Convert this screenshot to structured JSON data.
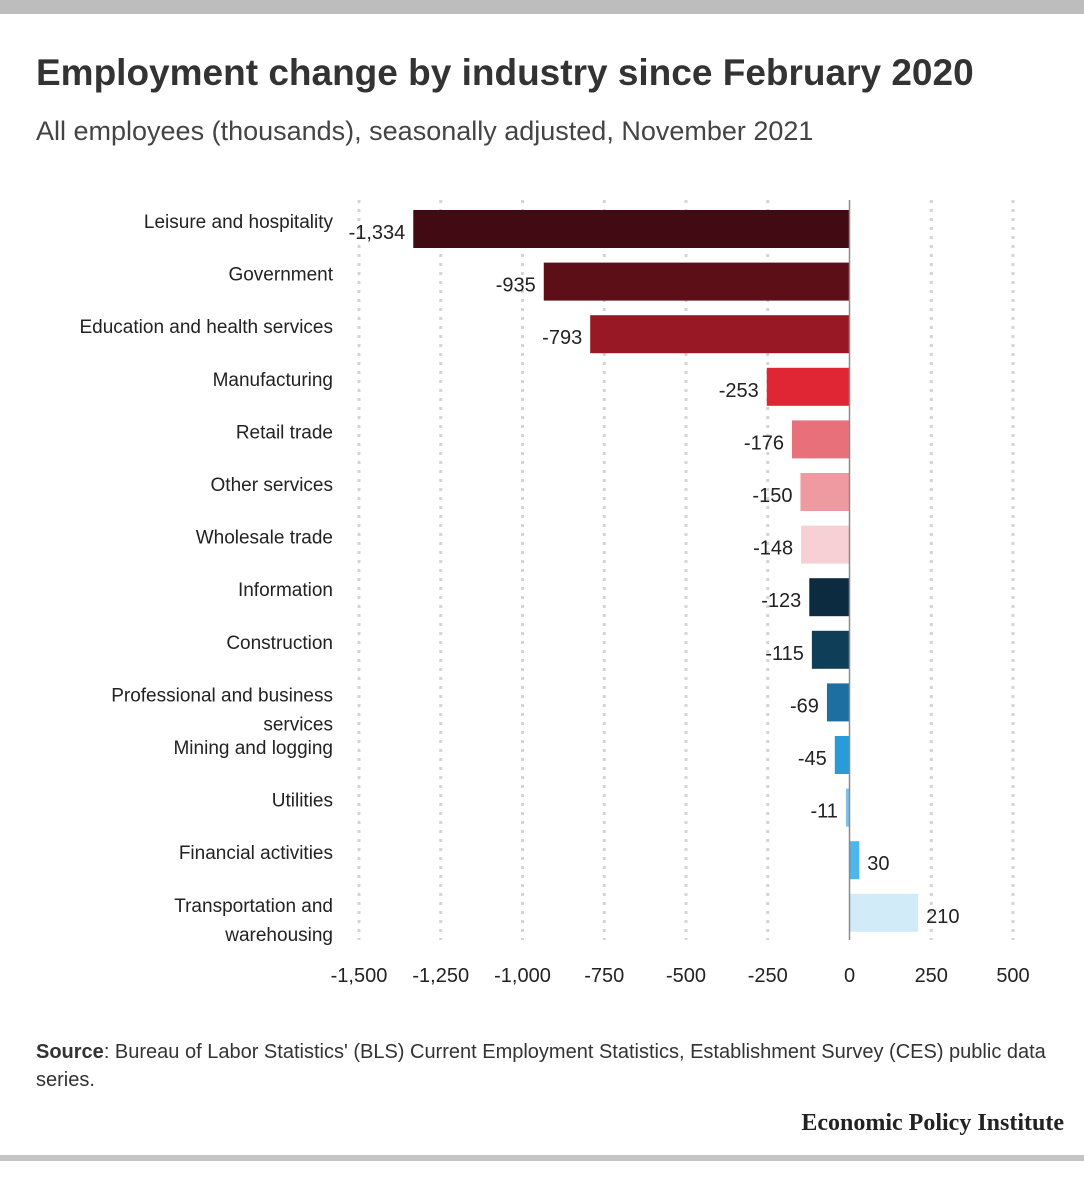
{
  "title": "Employment change by industry since February 2020",
  "subtitle": "All employees (thousands), seasonally adjusted, November 2021",
  "source_label": "Source",
  "source_text": ": Bureau of Labor Statistics' (BLS) Current Employment Statistics, Establishment Survey (CES) public data series.",
  "brand": "Economic Policy Institute",
  "chart_data": {
    "type": "bar",
    "orientation": "horizontal",
    "title": "Employment change by industry since February 2020",
    "subtitle": "All employees (thousands), seasonally adjusted, November 2021",
    "xlim": [
      -1500,
      500
    ],
    "xticks": [
      -1500,
      -1250,
      -1000,
      -750,
      -500,
      -250,
      0,
      250,
      500
    ],
    "xtick_labels": [
      "-1,500",
      "-1,250",
      "-1,000",
      "-750",
      "-500",
      "-250",
      "0",
      "250",
      "500"
    ],
    "grid": "vertical-dotted",
    "categories": [
      "Leisure and hospitality",
      "Government",
      "Education and health services",
      "Manufacturing",
      "Retail trade",
      "Other services",
      "Wholesale trade",
      "Information",
      "Construction",
      "Professional and business services",
      "Mining and logging",
      "Utilities",
      "Financial activities",
      "Transportation and warehousing"
    ],
    "category_lines": [
      [
        "Leisure and hospitality"
      ],
      [
        "Government"
      ],
      [
        "Education and health services"
      ],
      [
        "Manufacturing"
      ],
      [
        "Retail trade"
      ],
      [
        "Other services"
      ],
      [
        "Wholesale trade"
      ],
      [
        "Information"
      ],
      [
        "Construction"
      ],
      [
        "Professional and business",
        "services"
      ],
      [
        "Mining and logging"
      ],
      [
        "Utilities"
      ],
      [
        "Financial activities"
      ],
      [
        "Transportation and",
        "warehousing"
      ]
    ],
    "values": [
      -1334,
      -935,
      -793,
      -253,
      -176,
      -150,
      -148,
      -123,
      -115,
      -69,
      -45,
      -11,
      30,
      210
    ],
    "value_labels": [
      "-1,334",
      "-935",
      "-793",
      "-253",
      "-176",
      "-150",
      "-148",
      "-123",
      "-115",
      "-69",
      "-45",
      "-11",
      "30",
      "210"
    ],
    "colors": [
      "#420a12",
      "#5c0f17",
      "#981825",
      "#e02535",
      "#e8707a",
      "#ef9aa1",
      "#f6d0d4",
      "#0c2a40",
      "#0f3e58",
      "#1c6fa0",
      "#2a9bd9",
      "#7cc2ea",
      "#4db6ea",
      "#d2ebf8"
    ]
  }
}
